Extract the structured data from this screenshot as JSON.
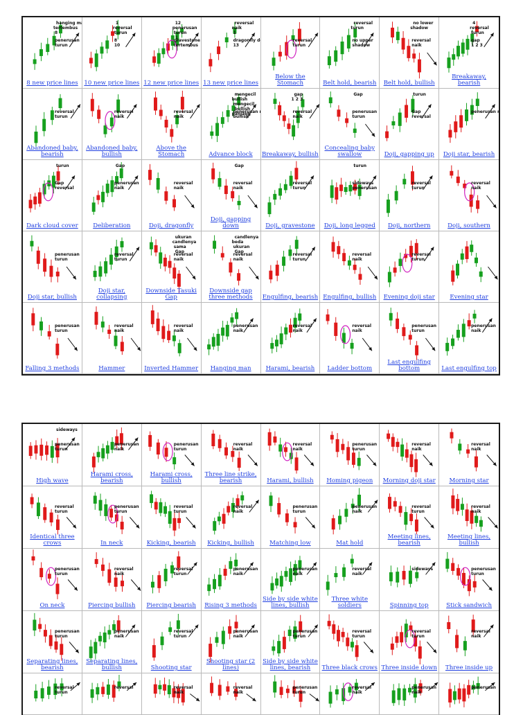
{
  "top_table": {
    "rows": [
      [
        {
          "caption": "8 new price lines",
          "notes": [
            "penerusan",
            "turun",
            "hanging man",
            "tertembus",
            "8"
          ]
        },
        {
          "caption": "10 new price lines",
          "notes": [
            "8",
            "10",
            "1",
            "reversal",
            "turun"
          ]
        },
        {
          "caption": "12 new price lines",
          "notes": [
            "gravestone doji",
            "tertembus",
            "12",
            "penerusan",
            "turun",
            "1"
          ]
        },
        {
          "caption": "13 new price lines",
          "notes": [
            "dragonfly doji",
            "13",
            "reversal",
            "naik",
            "1"
          ]
        },
        {
          "caption": "Below the Stomach",
          "notes": [
            "reversal",
            "turun"
          ]
        },
        {
          "caption": "Belt hold, bearish",
          "notes": [
            "no upper",
            "shadow",
            "reversal",
            "turun"
          ]
        },
        {
          "caption": "Belt hold, bullish",
          "notes": [
            "reversal",
            "naik",
            "no lower",
            "shadow"
          ]
        },
        {
          "caption": "Breakaway, bearish",
          "notes": [
            "gap",
            "1 2 3",
            "4",
            "reversal",
            "turun"
          ]
        }
      ],
      [
        {
          "caption": "Abandoned baby, bearish",
          "notes": [
            "reversal",
            "turun"
          ]
        },
        {
          "caption": "Abandoned baby, bullish",
          "notes": [
            "reversal",
            "naik"
          ]
        },
        {
          "caption": "Above the Stomach",
          "notes": [
            "reversal",
            "naik"
          ]
        },
        {
          "caption": "Advance block",
          "notes": [
            "penerusan naik",
            "bullish",
            "mengecil",
            "bullish",
            "mengecil",
            "bullish",
            "panjang"
          ]
        },
        {
          "caption": "Breakaway, bullish",
          "notes": [
            "reversal",
            "naik",
            "gap",
            "1 2 3"
          ]
        },
        {
          "caption": "Concealing baby swallow",
          "notes": [
            "penerusan",
            "turun",
            "Gap"
          ]
        },
        {
          "caption": "Doji, gapping up",
          "notes": [
            "Gap",
            "reversal",
            "turun"
          ]
        },
        {
          "caption": "Doji star, bearish",
          "notes": [
            "penerusan naik"
          ]
        }
      ],
      [
        {
          "caption": "Dark cloud cover",
          "notes": [
            "Gap",
            "reversal",
            "turun"
          ]
        },
        {
          "caption": "Deliberation",
          "notes": [
            "penerusan",
            "naik",
            "Gap"
          ]
        },
        {
          "caption": "Doji, dragonfly",
          "notes": [
            "reversal",
            "naik"
          ]
        },
        {
          "caption": "Doji, gapping down",
          "notes": [
            "reversal",
            "naik",
            "Gap"
          ]
        },
        {
          "caption": "Doji, gravestone",
          "notes": [
            "reversal",
            "turun"
          ]
        },
        {
          "caption": "Doji, long legged",
          "notes": [
            "sideways",
            "penerusan",
            "turun"
          ]
        },
        {
          "caption": "Doji, northern",
          "notes": [
            "reversal",
            "turun"
          ]
        },
        {
          "caption": "Doji, southern",
          "notes": [
            "reversal",
            "naik"
          ]
        }
      ],
      [
        {
          "caption": "Doji star, bullish",
          "notes": [
            "penerusan",
            "turun"
          ]
        },
        {
          "caption": "Doji star, collapsing",
          "notes": [
            "reversal",
            "turun"
          ]
        },
        {
          "caption": "Downside Tasuki Gap",
          "notes": [
            "reversal",
            "naik",
            "ukuran",
            "candlenya",
            "sama",
            "Gap"
          ]
        },
        {
          "caption": "Downside gap three methods",
          "notes": [
            "reversal",
            "naik",
            "candlenya",
            "beda",
            "ukuran",
            "Gap"
          ]
        },
        {
          "caption": "Engulfing, bearish",
          "notes": [
            "reversal",
            "turun"
          ]
        },
        {
          "caption": "Engulfing, bullish",
          "notes": [
            "reversal",
            "naik"
          ]
        },
        {
          "caption": "Evening doji star",
          "notes": [
            "reversal",
            "turun"
          ]
        },
        {
          "caption": "Evening star",
          "notes": []
        }
      ],
      [
        {
          "caption": "Falling 3 methods",
          "notes": [
            "penerusan",
            "turun"
          ]
        },
        {
          "caption": "Hammer",
          "notes": [
            "reversal",
            "naik"
          ]
        },
        {
          "caption": "Inverted Hammer",
          "notes": [
            "reversal",
            "naik"
          ]
        },
        {
          "caption": "Hanging man",
          "notes": [
            "penerusan",
            "naik"
          ]
        },
        {
          "caption": "Harami, bearish",
          "notes": [
            "reversal",
            "naik"
          ]
        },
        {
          "caption": "Ladder bottom",
          "notes": [
            "reversal",
            "naik"
          ]
        },
        {
          "caption": "Last engulfing bottom",
          "notes": [
            "penerusan",
            "turun"
          ]
        },
        {
          "caption": "Last engulfing top",
          "notes": [
            "penerusan",
            "naik"
          ]
        }
      ]
    ]
  },
  "bottom_table": {
    "rows": [
      [
        {
          "caption": "High wave",
          "notes": [
            "penerusan",
            "turun",
            "sideways"
          ]
        },
        {
          "caption": "Harami cross, bearish",
          "notes": [
            "penerusan",
            "naik"
          ]
        },
        {
          "caption": "Harami cross, bullish",
          "notes": [
            "penerusan",
            "turun"
          ]
        },
        {
          "caption": "Three line strike, bearish",
          "notes": [
            "reversal",
            "naik"
          ]
        },
        {
          "caption": "Harami, bullish",
          "notes": [
            "reversal",
            "naik"
          ]
        },
        {
          "caption": "Homing pigeon",
          "notes": [
            "penerusan",
            "turun"
          ]
        },
        {
          "caption": "Morning doji star",
          "notes": [
            "reversal",
            "naik"
          ]
        },
        {
          "caption": "Morning star",
          "notes": [
            "reversal",
            "naik"
          ]
        }
      ],
      [
        {
          "caption": "Identical three crows",
          "notes": [
            "reversal",
            "turun"
          ]
        },
        {
          "caption": "In neck",
          "notes": [
            "penerusan",
            "turun"
          ]
        },
        {
          "caption": "Kicking, bearish",
          "notes": [
            "reversal",
            "turun"
          ]
        },
        {
          "caption": "Kicking, bullish",
          "notes": [
            "reversal",
            "naik"
          ]
        },
        {
          "caption": "Matching low",
          "notes": [
            "penerusan",
            "turun"
          ]
        },
        {
          "caption": "Mat hold",
          "notes": [
            "penerusan",
            "naik"
          ]
        },
        {
          "caption": "Meeting lines, bearish",
          "notes": [
            "reversal",
            "turun"
          ]
        },
        {
          "caption": "Meeting lines, bullish",
          "notes": [
            "reversal",
            "naik"
          ]
        }
      ],
      [
        {
          "caption": "On neck",
          "notes": [
            "penerusan",
            "turun"
          ]
        },
        {
          "caption": "Piercing bullish",
          "notes": [
            "reversal",
            "naik"
          ]
        },
        {
          "caption": "Piercing bearish",
          "notes": [
            "reversal",
            "turun"
          ]
        },
        {
          "caption": "Rising 3 methods",
          "notes": [
            "penerusan",
            "naik"
          ]
        },
        {
          "caption": "Side by side white lines, bullish",
          "notes": [
            "penerusan",
            "naik"
          ]
        },
        {
          "caption": "Three white soldiers",
          "notes": [
            "reversal",
            "naik"
          ]
        },
        {
          "caption": "Spinning top",
          "notes": [
            "sideways"
          ]
        },
        {
          "caption": "Stick sandwich",
          "notes": [
            "penerusan",
            "turun"
          ]
        }
      ],
      [
        {
          "caption": "Separating lines, bearish",
          "notes": [
            "penerusan",
            "turun"
          ]
        },
        {
          "caption": "Separating lines, bullish",
          "notes": [
            "penerusan",
            "naik"
          ]
        },
        {
          "caption": "Shooting star",
          "notes": [
            "reversal",
            "turun"
          ]
        },
        {
          "caption": "Shooting star (2 lines)",
          "notes": [
            "penerusan",
            "naik"
          ]
        },
        {
          "caption": "Side by side white lines, bearish",
          "notes": [
            "penerusan",
            "turun"
          ]
        },
        {
          "caption": "Three black crows",
          "notes": [
            "reversal",
            "turun"
          ]
        },
        {
          "caption": "Three inside down",
          "notes": [
            "reversal",
            "turun"
          ]
        },
        {
          "caption": "Three inside up",
          "notes": [
            "reversal",
            "naik"
          ]
        }
      ],
      [
        {
          "caption": "",
          "notes": [
            "reversal",
            "turun"
          ]
        },
        {
          "caption": "",
          "notes": [
            "reversal"
          ]
        },
        {
          "caption": "",
          "notes": [
            "reversal",
            "naik"
          ]
        },
        {
          "caption": "",
          "notes": [
            "reversal",
            "naik"
          ]
        },
        {
          "caption": "",
          "notes": [
            "penerusan",
            "turun"
          ]
        },
        {
          "caption": "",
          "notes": [
            "reversal",
            "naik"
          ]
        },
        {
          "caption": "",
          "notes": [
            "penerusan",
            "naik"
          ]
        },
        {
          "caption": "",
          "notes": [
            "penerusan"
          ]
        }
      ]
    ]
  },
  "colors": {
    "bullish": "#16a01e",
    "bearish": "#e01a1a",
    "caption": "#1f3fe0",
    "highlight": "#d020c0",
    "border": "#1a1a1a"
  }
}
